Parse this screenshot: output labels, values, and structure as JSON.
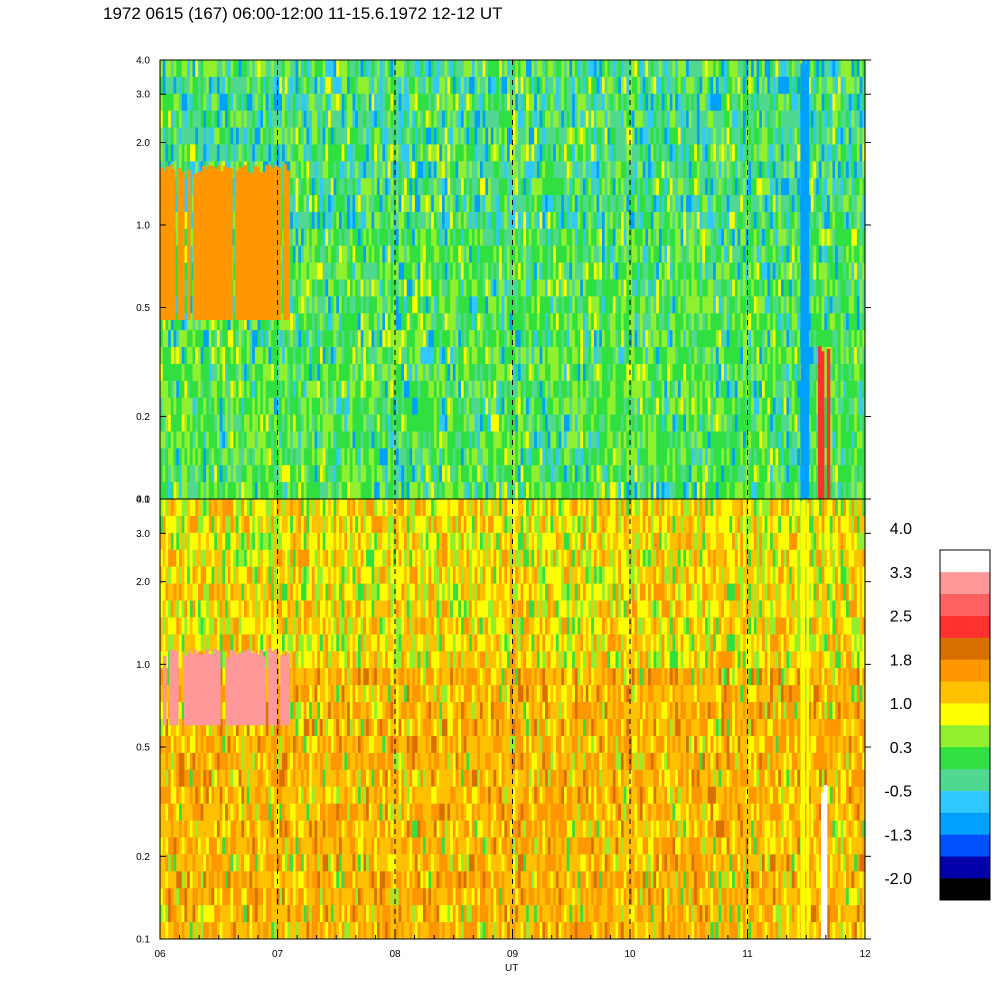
{
  "title": "1972 0615 (167) 06:00-12:00 11-15.6.1972  12-12 UT",
  "chart_data": [
    {
      "type": "heatmap",
      "panel": "top",
      "x_ticks": [
        "06",
        "07",
        "08",
        "09",
        "10",
        "11",
        "12"
      ],
      "x_range_hours": [
        6,
        12
      ],
      "y_scale": "log",
      "y_range": [
        0.1,
        4.0
      ],
      "y_ticks": [
        "0.1",
        "0.2",
        "0.5",
        "1.0",
        "2.0",
        "3.0",
        "4.0"
      ],
      "dominant_levels": [
        "0.3",
        "1.0",
        "-0.5"
      ],
      "features": [
        {
          "x_hours": [
            6.0,
            7.1
          ],
          "y": [
            0.45,
            1.6
          ],
          "level": "1.0"
        },
        {
          "x_hours": [
            11.45,
            11.52
          ],
          "y": [
            0.1,
            4.0
          ],
          "level": "-1.3"
        },
        {
          "x_hours": [
            11.6,
            11.7
          ],
          "y": [
            0.1,
            0.35
          ],
          "level": "1.8"
        }
      ]
    },
    {
      "type": "heatmap",
      "panel": "bottom",
      "x_ticks": [
        "06",
        "07",
        "08",
        "09",
        "10",
        "11",
        "12"
      ],
      "x_range_hours": [
        6,
        12
      ],
      "xlabel": "UT",
      "y_scale": "log",
      "y_range": [
        0.1,
        4.0
      ],
      "y_ticks": [
        "0.1",
        "0.2",
        "0.5",
        "1.0",
        "2.0",
        "3.0",
        "4.0"
      ],
      "dominant_levels": [
        "1.8",
        "1.0",
        "2.5"
      ],
      "features": [
        {
          "x_hours": [
            6.0,
            7.1
          ],
          "y": [
            0.6,
            1.1
          ],
          "level": "2.5"
        },
        {
          "x_hours": [
            11.45,
            11.52
          ],
          "y": [
            0.1,
            4.0
          ],
          "level": "0.3"
        },
        {
          "x_hours": [
            11.6,
            11.7
          ],
          "y": [
            0.1,
            0.35
          ],
          "level": "3.3"
        }
      ]
    }
  ],
  "colorbar": {
    "colors": [
      "#000000",
      "#0000aa",
      "#0050ff",
      "#00a0ff",
      "#30c8ff",
      "#50d890",
      "#30e040",
      "#90f030",
      "#ffff00",
      "#ffc000",
      "#ff9800",
      "#d87000",
      "#ff3030",
      "#ff6060",
      "#ff9898",
      "#ffffff"
    ],
    "labels": [
      "-2.0",
      "-1.3",
      "-0.5",
      "0.3",
      "1.0",
      "1.8",
      "2.5",
      "3.3",
      "4.0"
    ]
  }
}
